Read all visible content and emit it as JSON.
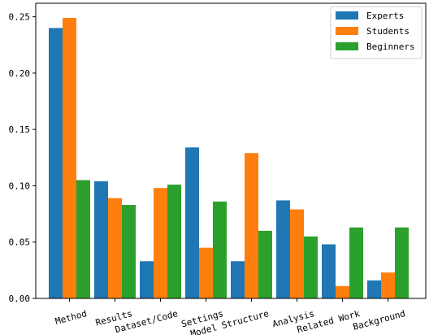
{
  "chart_data": {
    "type": "bar",
    "categories": [
      "Method",
      "Results",
      "Dataset/Code",
      "Settings",
      "Model Structure",
      "Analysis",
      "Related Work",
      "Background"
    ],
    "series": [
      {
        "name": "Experts",
        "color": "#1f77b4",
        "values": [
          0.24,
          0.104,
          0.033,
          0.134,
          0.033,
          0.087,
          0.048,
          0.016
        ]
      },
      {
        "name": "Students",
        "color": "#ff7f0e",
        "values": [
          0.249,
          0.089,
          0.098,
          0.045,
          0.129,
          0.079,
          0.011,
          0.023
        ]
      },
      {
        "name": "Beginners",
        "color": "#2ca02c",
        "values": [
          0.105,
          0.083,
          0.101,
          0.086,
          0.06,
          0.055,
          0.063,
          0.063
        ]
      }
    ],
    "ylim": [
      0,
      0.262
    ],
    "yticks": [
      "0.00",
      "0.05",
      "0.10",
      "0.15",
      "0.20",
      "0.25"
    ],
    "xlabel": "",
    "ylabel": "",
    "title": "",
    "grid": false,
    "legend": "top-right"
  }
}
